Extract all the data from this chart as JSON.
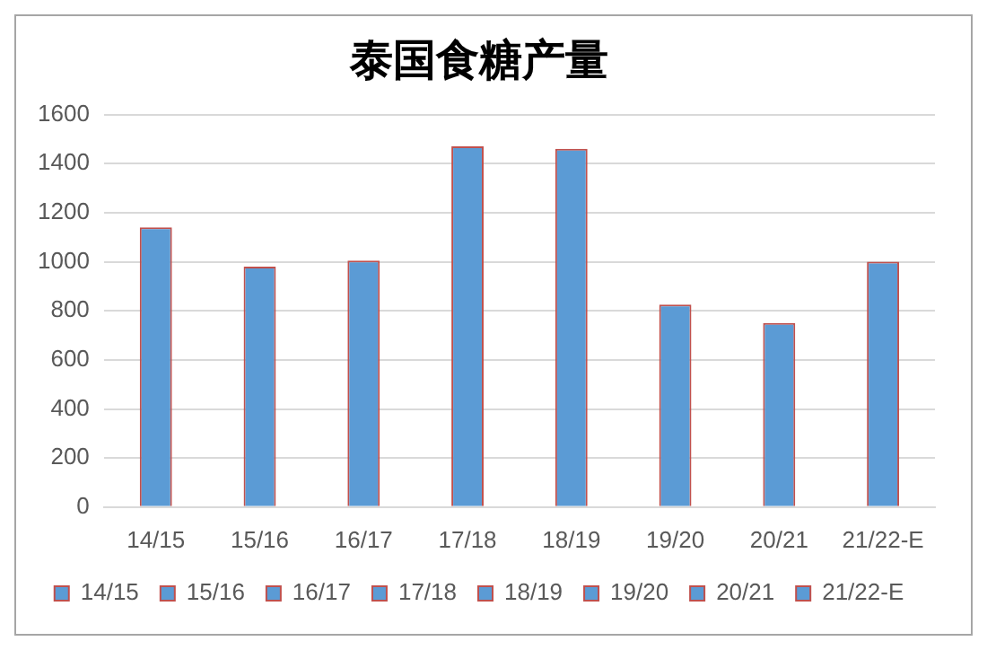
{
  "chart_data": {
    "type": "bar",
    "title": "泰国食糖产量",
    "categories": [
      "14/15",
      "15/16",
      "16/17",
      "17/18",
      "18/19",
      "19/20",
      "20/21",
      "21/22-E"
    ],
    "series": [
      {
        "name": "14/15",
        "color": "#5b9bd5",
        "values": [
          1140,
          null,
          null,
          null,
          null,
          null,
          null,
          null
        ]
      },
      {
        "name": "15/16",
        "color": "#5b9bd5",
        "values": [
          null,
          980,
          null,
          null,
          null,
          null,
          null,
          null
        ]
      },
      {
        "name": "16/17",
        "color": "#5b9bd5",
        "values": [
          null,
          null,
          1005,
          null,
          null,
          null,
          null,
          null
        ]
      },
      {
        "name": "17/18",
        "color": "#5b9bd5",
        "values": [
          null,
          null,
          null,
          1470,
          null,
          null,
          null,
          null
        ]
      },
      {
        "name": "18/19",
        "color": "#5b9bd5",
        "values": [
          null,
          null,
          null,
          null,
          1460,
          null,
          null,
          null
        ]
      },
      {
        "name": "19/20",
        "color": "#5b9bd5",
        "values": [
          null,
          null,
          null,
          null,
          null,
          825,
          null,
          null
        ]
      },
      {
        "name": "20/21",
        "color": "#5b9bd5",
        "values": [
          null,
          null,
          null,
          null,
          null,
          null,
          750,
          null
        ]
      },
      {
        "name": "21/22-E",
        "color": "#5b9bd5",
        "values": [
          null,
          null,
          null,
          null,
          null,
          null,
          null,
          1000
        ]
      }
    ],
    "ylim": [
      0,
      1600
    ],
    "yticks": [
      0,
      200,
      400,
      600,
      800,
      1000,
      1200,
      1400,
      1600
    ],
    "grid": "y",
    "legend": "bottom"
  }
}
